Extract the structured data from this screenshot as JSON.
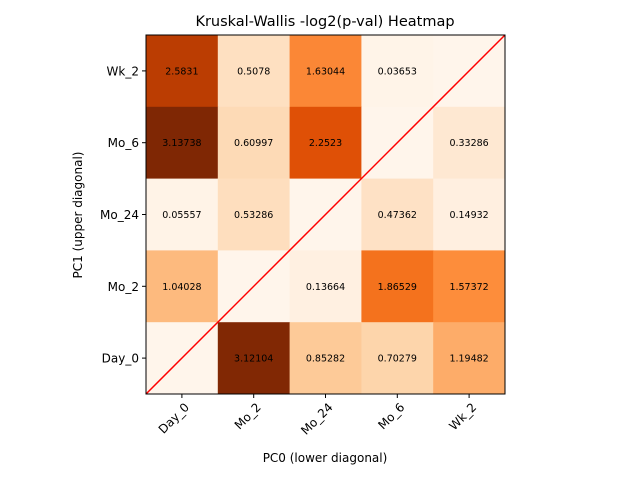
{
  "chart_data": {
    "type": "heatmap",
    "title": "Kruskal-Wallis -log2(p-val) Heatmap",
    "xlabel": "PC0 (lower diagonal)",
    "ylabel": "PC1 (upper diagonal)",
    "x_categories": [
      "Day_0",
      "Mo_2",
      "Mo_24",
      "Mo_6",
      "Wk_2"
    ],
    "y_categories": [
      "Day_0",
      "Mo_2",
      "Mo_24",
      "Mo_6",
      "Wk_2"
    ],
    "y_order": "bottom-to-top",
    "colormap": "Oranges",
    "value_range": [
      0,
      3.13738
    ],
    "diagonal_line_color": "#ff0000",
    "cells": [
      {
        "x": "Day_0",
        "y": "Wk_2",
        "value": 2.5831,
        "label": "2.5831"
      },
      {
        "x": "Mo_2",
        "y": "Wk_2",
        "value": 0.5078,
        "label": "0.5078"
      },
      {
        "x": "Mo_24",
        "y": "Wk_2",
        "value": 1.63044,
        "label": "1.63044"
      },
      {
        "x": "Mo_6",
        "y": "Wk_2",
        "value": 0.03653,
        "label": "0.03653"
      },
      {
        "x": "Wk_2",
        "y": "Wk_2",
        "value": 0,
        "label": ""
      },
      {
        "x": "Day_0",
        "y": "Mo_6",
        "value": 3.13738,
        "label": "3.13738"
      },
      {
        "x": "Mo_2",
        "y": "Mo_6",
        "value": 0.60997,
        "label": "0.60997"
      },
      {
        "x": "Mo_24",
        "y": "Mo_6",
        "value": 2.2523,
        "label": "2.2523"
      },
      {
        "x": "Mo_6",
        "y": "Mo_6",
        "value": 0,
        "label": ""
      },
      {
        "x": "Wk_2",
        "y": "Mo_6",
        "value": 0.33286,
        "label": "0.33286"
      },
      {
        "x": "Day_0",
        "y": "Mo_24",
        "value": 0.05557,
        "label": "0.05557"
      },
      {
        "x": "Mo_2",
        "y": "Mo_24",
        "value": 0.53286,
        "label": "0.53286"
      },
      {
        "x": "Mo_24",
        "y": "Mo_24",
        "value": 0,
        "label": ""
      },
      {
        "x": "Mo_6",
        "y": "Mo_24",
        "value": 0.47362,
        "label": "0.47362"
      },
      {
        "x": "Wk_2",
        "y": "Mo_24",
        "value": 0.14932,
        "label": "0.14932"
      },
      {
        "x": "Day_0",
        "y": "Mo_2",
        "value": 1.04028,
        "label": "1.04028"
      },
      {
        "x": "Mo_2",
        "y": "Mo_2",
        "value": 0,
        "label": ""
      },
      {
        "x": "Mo_24",
        "y": "Mo_2",
        "value": 0.13664,
        "label": "0.13664"
      },
      {
        "x": "Mo_6",
        "y": "Mo_2",
        "value": 1.86529,
        "label": "1.86529"
      },
      {
        "x": "Wk_2",
        "y": "Mo_2",
        "value": 1.57372,
        "label": "1.57372"
      },
      {
        "x": "Day_0",
        "y": "Day_0",
        "value": 0,
        "label": ""
      },
      {
        "x": "Mo_2",
        "y": "Day_0",
        "value": 3.12104,
        "label": "3.12104"
      },
      {
        "x": "Mo_24",
        "y": "Day_0",
        "value": 0.85282,
        "label": "0.85282"
      },
      {
        "x": "Mo_6",
        "y": "Day_0",
        "value": 0.70279,
        "label": "0.70279"
      },
      {
        "x": "Wk_2",
        "y": "Day_0",
        "value": 1.19482,
        "label": "1.19482"
      }
    ]
  }
}
